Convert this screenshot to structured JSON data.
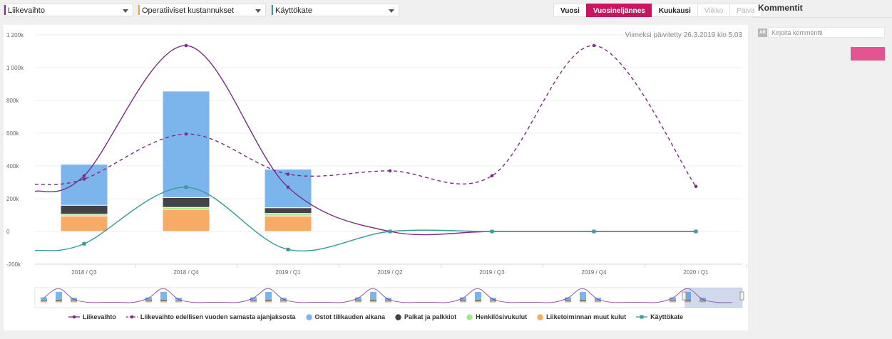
{
  "selectors": [
    {
      "label": "Liikevaihto",
      "color": "#7b2d83"
    },
    {
      "label": "Operatiiviset kustannukset",
      "color": "#f0a050"
    },
    {
      "label": "Käyttökate",
      "color": "#3b9a9a"
    }
  ],
  "tabs": [
    {
      "label": "Vuosi",
      "state": "normal"
    },
    {
      "label": "Vuosineljännes",
      "state": "active"
    },
    {
      "label": "Kuukausi",
      "state": "normal"
    },
    {
      "label": "Viikko",
      "state": "disabled"
    },
    {
      "label": "Päivä",
      "state": "disabled"
    }
  ],
  "updated_text": "Viimeksi päivitetty 26.3.2019 klo 5.03",
  "comments": {
    "title": "Kommentit",
    "avatar": "AR",
    "placeholder": "Kirjoita kommentti"
  },
  "chart_data": {
    "type": "bar",
    "categories": [
      "2018 / Q3",
      "2018 / Q4",
      "2019 / Q1",
      "2019 / Q2",
      "2019 / Q3",
      "2019 / Q4",
      "2020 / Q1"
    ],
    "ylim": [
      -200000,
      1200000
    ],
    "yticks": [
      -200000,
      0,
      200000,
      400000,
      600000,
      800000,
      1000000,
      1200000
    ],
    "ytick_labels": [
      "-200k",
      "0",
      "200k",
      "400k",
      "600k",
      "800k",
      "1 000k",
      "1 200k"
    ],
    "bar_series": [
      {
        "name": "Liiketoiminnan muut kulut",
        "color": "#f7ab67",
        "values": [
          95000,
          135000,
          95000,
          null,
          null,
          null,
          null
        ]
      },
      {
        "name": "Henkilösivukulut",
        "color": "#a4e68a",
        "values": [
          10000,
          12000,
          15000,
          null,
          null,
          null,
          null
        ]
      },
      {
        "name": "Palkat ja palkkiot",
        "color": "#434348",
        "values": [
          55000,
          60000,
          35000,
          null,
          null,
          null,
          null
        ]
      },
      {
        "name": "Ostot tilikauden aikana",
        "color": "#7cb5ec",
        "values": [
          250000,
          650000,
          235000,
          null,
          null,
          null,
          null
        ]
      }
    ],
    "line_series": [
      {
        "name": "Liikevaihto",
        "color": "#7b2d83",
        "dash": false,
        "marker": "circle",
        "values": [
          340000,
          1135000,
          270000,
          0,
          0,
          0,
          0
        ]
      },
      {
        "name": "Liikevaihto edellisen vuoden samasta ajanjaksosta",
        "color": "#7b2d83",
        "dash": true,
        "marker": "circle",
        "values": [
          320000,
          595000,
          350000,
          370000,
          340000,
          1135000,
          275000
        ]
      },
      {
        "name": "Käyttökate",
        "color": "#3b9a9a",
        "dash": false,
        "marker": "square",
        "values": [
          -75000,
          270000,
          -110000,
          0,
          0,
          0,
          0
        ]
      }
    ],
    "legend_order": [
      "Liikevaihto",
      "Liikevaihto edellisen vuoden samasta ajanjaksosta",
      "Ostot tilikauden aikana",
      "Palkat ja palkkiot",
      "Henkilösivukulut",
      "Liiketoiminnan muut kulut",
      "Käyttökate"
    ],
    "legend_position": "bottom",
    "grid": true
  }
}
